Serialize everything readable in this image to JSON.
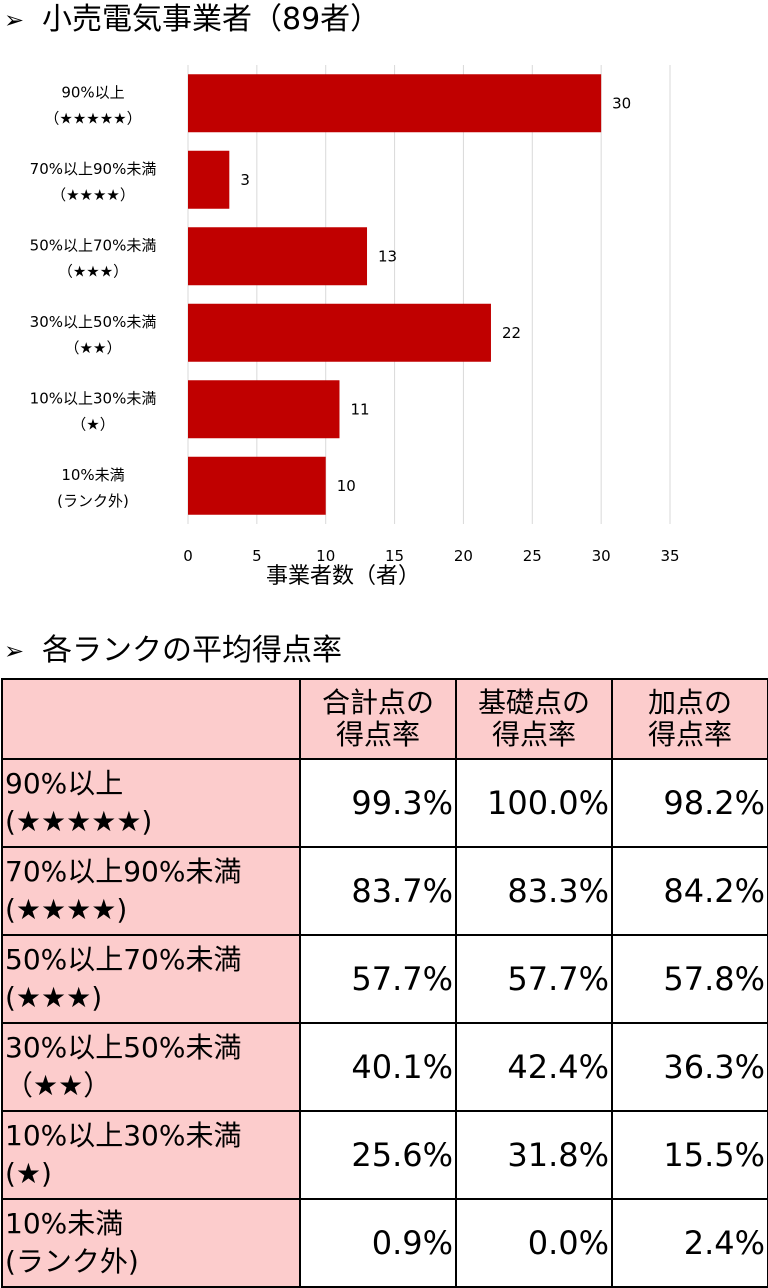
{
  "section1": {
    "arrow": "➢",
    "title": "小売電気事業者（89者）"
  },
  "section2": {
    "arrow": "➢",
    "title": "各ランクの平均得点率"
  },
  "chart_data": {
    "type": "bar",
    "orientation": "horizontal",
    "categories": [
      [
        "90%以上",
        "（★★★★★）"
      ],
      [
        "70%以上90%未満",
        "（★★★★）"
      ],
      [
        "50%以上70%未満",
        "（★★★）"
      ],
      [
        "30%以上50%未満",
        "（★★）"
      ],
      [
        "10%以上30%未満",
        "（★）"
      ],
      [
        "10%未満",
        "(ランク外)"
      ]
    ],
    "values": [
      30,
      3,
      13,
      22,
      11,
      10
    ],
    "xlabel": "事業者数（者）",
    "xlim": [
      0,
      35
    ],
    "xticks": [
      0,
      5,
      10,
      15,
      20,
      25,
      30,
      35
    ],
    "bar_color": "#c00000",
    "grid": "vertical",
    "data_labels": true
  },
  "table": {
    "headers": [
      [
        "合計点の",
        "得点率"
      ],
      [
        "基礎点の",
        "得点率"
      ],
      [
        "加点の",
        "得点率"
      ]
    ],
    "header_bg": "#fccccc",
    "rows": [
      {
        "label1": "90%以上",
        "label2": "(★★★★★)",
        "values": [
          "99.3%",
          "100.0%",
          "98.2%"
        ]
      },
      {
        "label1": "70%以上90%未満",
        "label2": "(★★★★)",
        "values": [
          "83.7%",
          "83.3%",
          "84.2%"
        ]
      },
      {
        "label1": "50%以上70%未満",
        "label2": "(★★★)",
        "values": [
          "57.7%",
          "57.7%",
          "57.8%"
        ]
      },
      {
        "label1": "30%以上50%未満",
        "label2": "（★★）",
        "values": [
          "40.1%",
          "42.4%",
          "36.3%"
        ]
      },
      {
        "label1": "10%以上30%未満",
        "label2": "(★)",
        "values": [
          "25.6%",
          "31.8%",
          "15.5%"
        ]
      },
      {
        "label1": "10%未満",
        "label2": "(ランク外)",
        "values": [
          "0.9%",
          "0.0%",
          "2.4%"
        ]
      }
    ]
  }
}
